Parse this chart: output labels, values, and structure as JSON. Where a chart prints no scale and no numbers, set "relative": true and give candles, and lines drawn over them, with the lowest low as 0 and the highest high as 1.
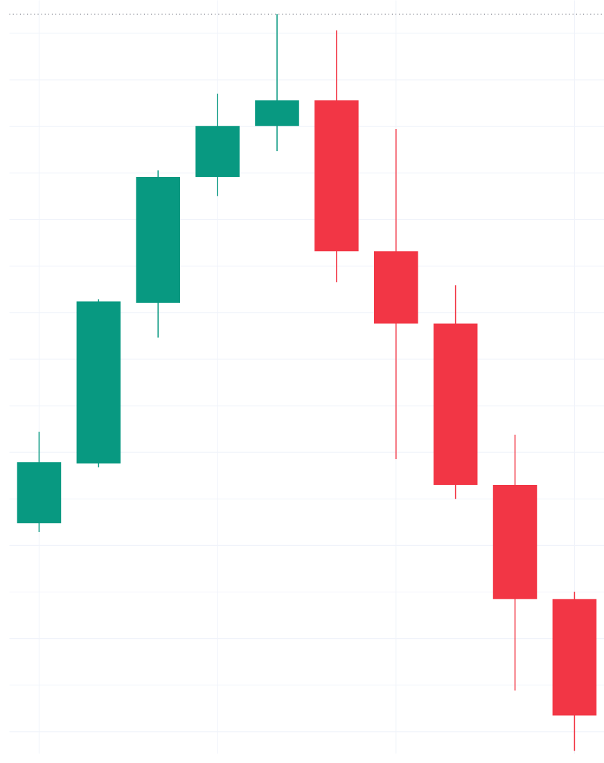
{
  "chart_data": {
    "type": "candlestick",
    "relative": true,
    "categories": [
      null,
      null,
      null,
      null,
      null,
      null,
      null,
      null,
      null,
      null
    ],
    "ohlc": [
      [
        0.309,
        0.433,
        0.297,
        0.392
      ],
      [
        0.39,
        0.613,
        0.385,
        0.61
      ],
      [
        0.608,
        0.788,
        0.561,
        0.779
      ],
      [
        0.779,
        0.892,
        0.753,
        0.848
      ],
      [
        0.848,
        1,
        0.814,
        0.883
      ],
      [
        0.883,
        0.978,
        0.636,
        0.678
      ],
      [
        0.678,
        0.844,
        0.396,
        0.58
      ],
      [
        0.58,
        0.632,
        0.342,
        0.361
      ],
      [
        0.361,
        0.429,
        0.082,
        0.206
      ],
      [
        0.206,
        0.216,
        0,
        0.048
      ]
    ],
    "colors": [
      "#089981",
      "#089981",
      "#089981",
      "#089981",
      "#089981",
      "#f23645",
      "#f23645",
      "#f23645",
      "#f23645",
      "#f23645"
    ],
    "grid": true,
    "ref_lines": [
      {
        "axis": "y",
        "value": 1,
        "line_style": "dotted",
        "color": "#787b86"
      }
    ]
  }
}
